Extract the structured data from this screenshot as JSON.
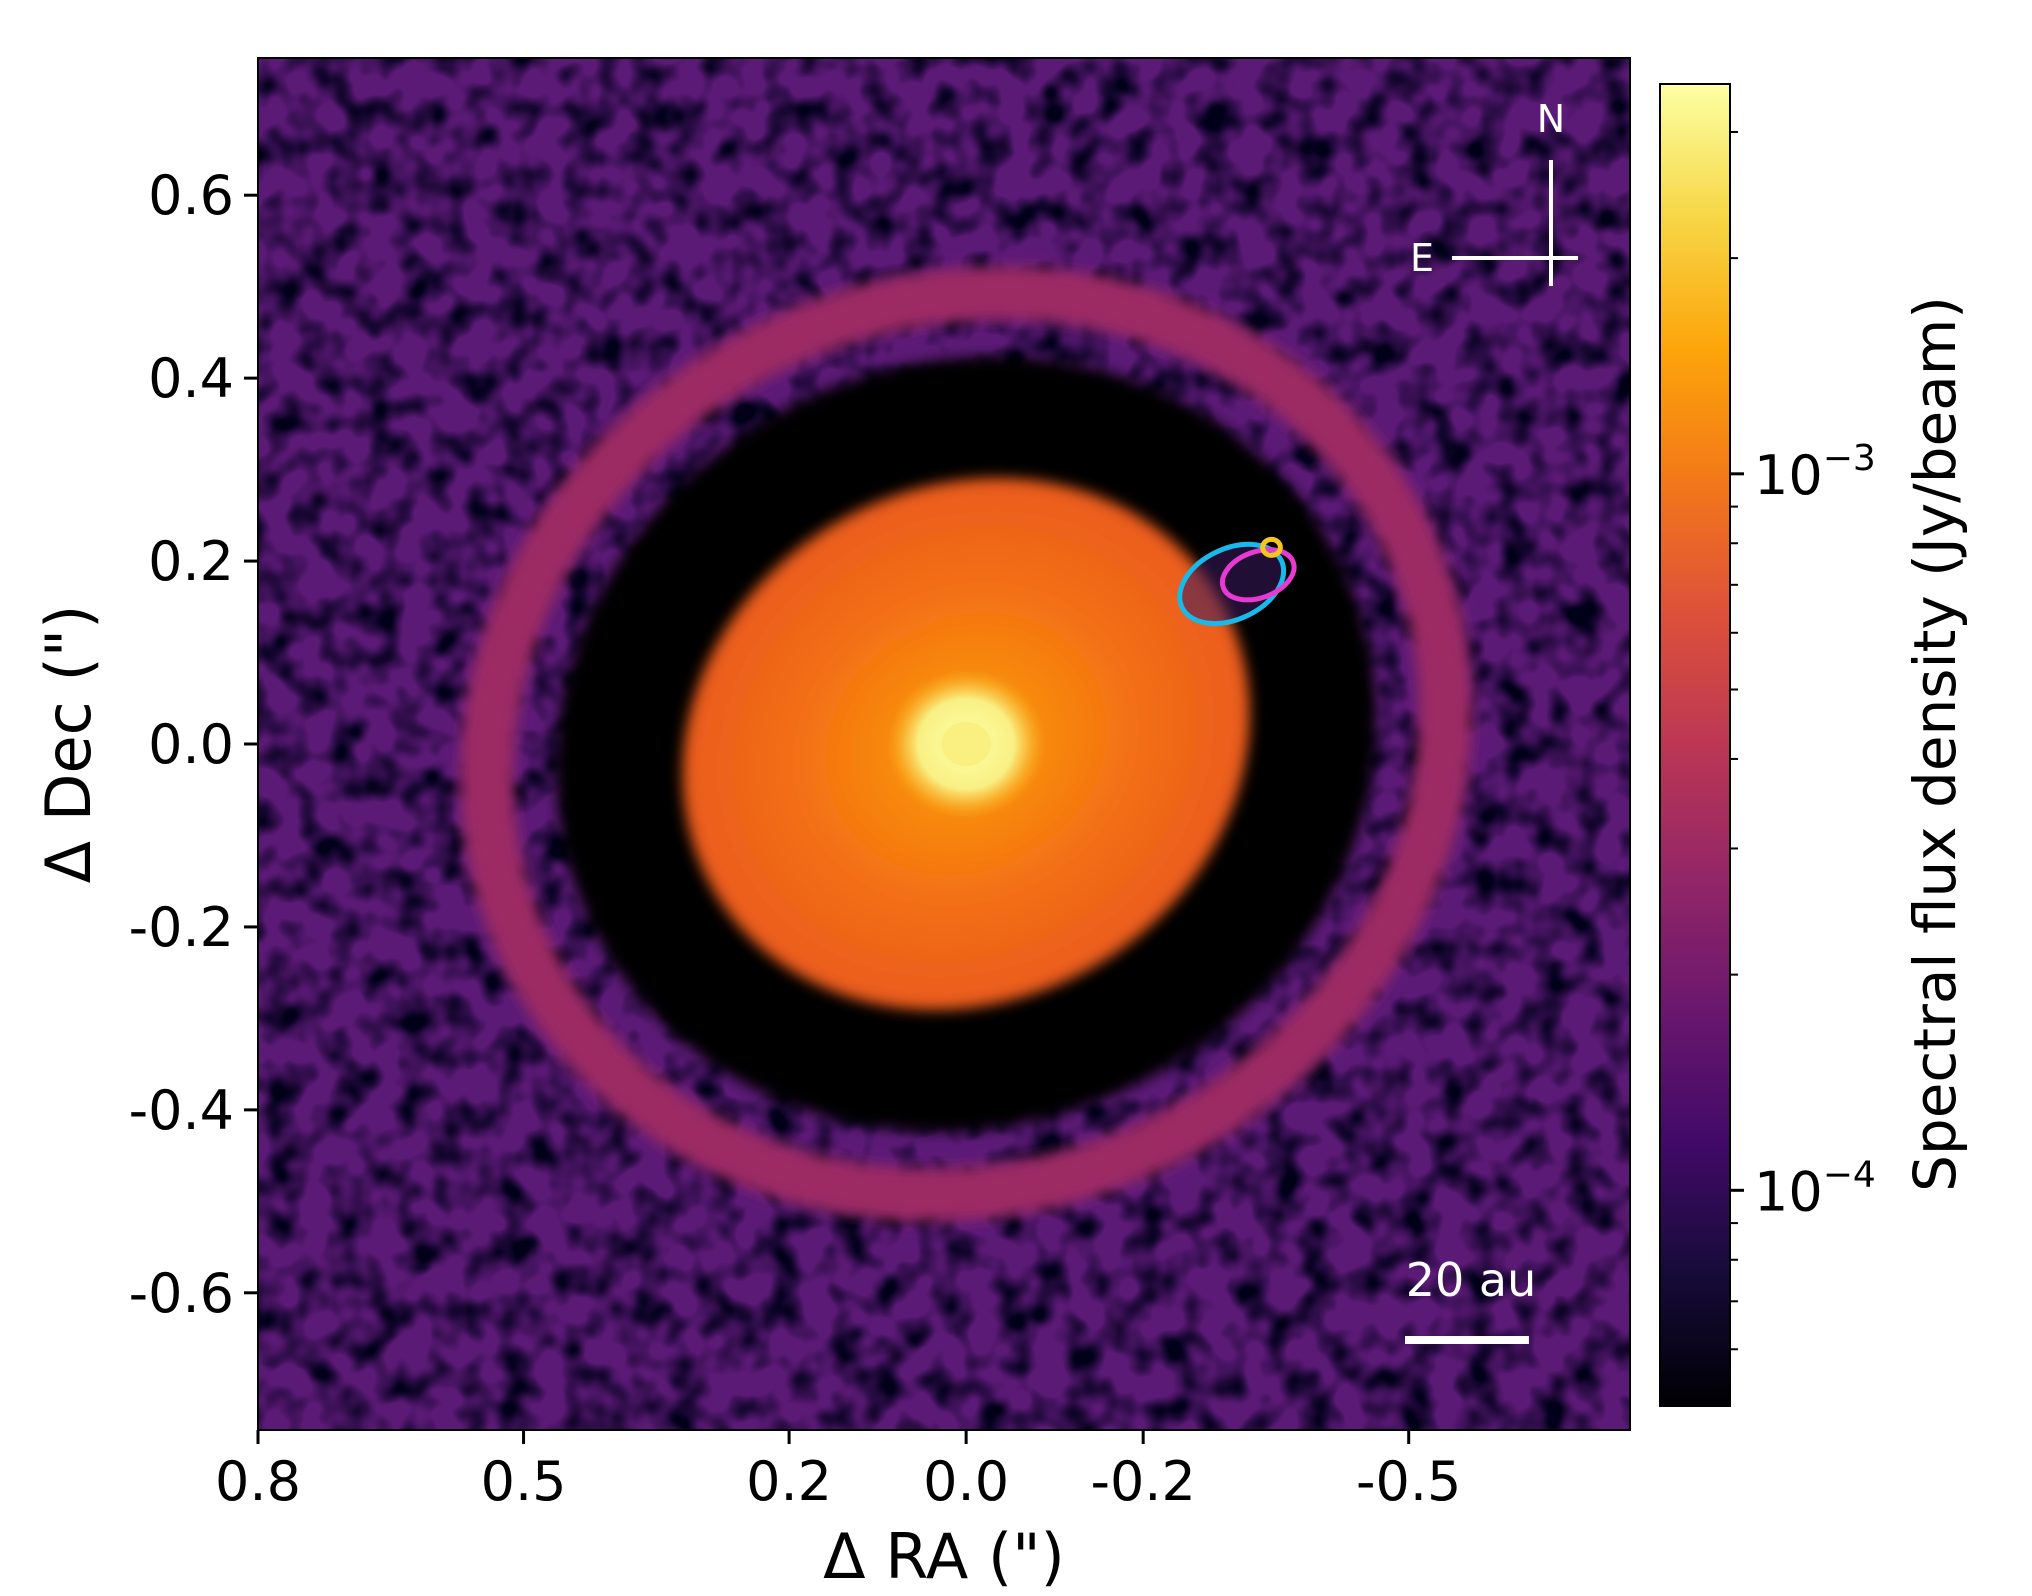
{
  "chart_data": {
    "type": "heatmap",
    "title": "",
    "xlabel": "Δ RA (\")",
    "ylabel": "Δ Dec (\")",
    "xlim": [
      0.8,
      -0.75
    ],
    "ylim": [
      -0.75,
      0.75
    ],
    "x_ticks": [
      0.8,
      0.5,
      0.2,
      0.0,
      -0.2,
      -0.5
    ],
    "x_tick_labels": [
      "0.8",
      "0.5",
      "0.2",
      "0.0",
      "-0.2",
      "-0.5"
    ],
    "y_ticks": [
      0.6,
      0.4,
      0.2,
      0.0,
      -0.2,
      -0.4,
      -0.6
    ],
    "y_tick_labels": [
      "0.6",
      "0.4",
      "0.2",
      "0.0",
      "-0.2",
      "-0.4",
      "-0.6"
    ],
    "grid": false,
    "colormap": "inferno",
    "colorbar": {
      "label": "Spectral flux density (Jy/beam)",
      "scale": "log",
      "range": [
        5e-05,
        0.0035
      ],
      "major_ticks": [
        0.0001,
        0.001
      ],
      "major_tick_labels": [
        {
          "base": "10",
          "exp": "−4"
        },
        {
          "base": "10",
          "exp": "−3"
        }
      ],
      "minor_ticks": [
        6e-05,
        7e-05,
        8e-05,
        9e-05,
        0.0002,
        0.0003,
        0.0004,
        0.0005,
        0.0006,
        0.0007,
        0.0008,
        0.0009,
        0.002,
        0.003
      ]
    },
    "features": {
      "central_source": {
        "x": 0.0,
        "y": 0.0,
        "peak_flux": 0.003
      },
      "inner_disk": {
        "center": [
          0.0,
          0.0
        ],
        "semi_major": 0.33,
        "semi_minor": 0.29,
        "position_angle_deg": 30,
        "flux": 0.0008
      },
      "gap": {
        "semi_major": 0.47,
        "semi_minor": 0.43,
        "flux": 5e-05
      },
      "outer_ring": {
        "semi_major": 0.55,
        "semi_minor": 0.5,
        "width": 0.06,
        "position_angle_deg": 25,
        "flux": 0.0003
      },
      "background_flux": 0.00012
    },
    "overlays": [
      {
        "shape": "ellipse",
        "color": "#19b9e8",
        "center": [
          -0.3,
          0.175
        ],
        "semi_major": 0.062,
        "semi_minor": 0.04,
        "angle_deg": -25
      },
      {
        "shape": "ellipse",
        "color": "#e83ad3",
        "center": [
          -0.33,
          0.185
        ],
        "semi_major": 0.042,
        "semi_minor": 0.026,
        "angle_deg": -20
      },
      {
        "shape": "ellipse",
        "color": "#f7c51c",
        "center": [
          -0.345,
          0.215
        ],
        "semi_major": 0.01,
        "semi_minor": 0.009,
        "angle_deg": 0
      }
    ],
    "annotations": {
      "compass": {
        "north": "N",
        "east": "E"
      },
      "scale_bar": {
        "label": "20 au",
        "length_arcsec": 0.14
      }
    }
  },
  "colors": {
    "background": "#000004",
    "annotation_text": "#ffffff",
    "axis": "#000000"
  }
}
